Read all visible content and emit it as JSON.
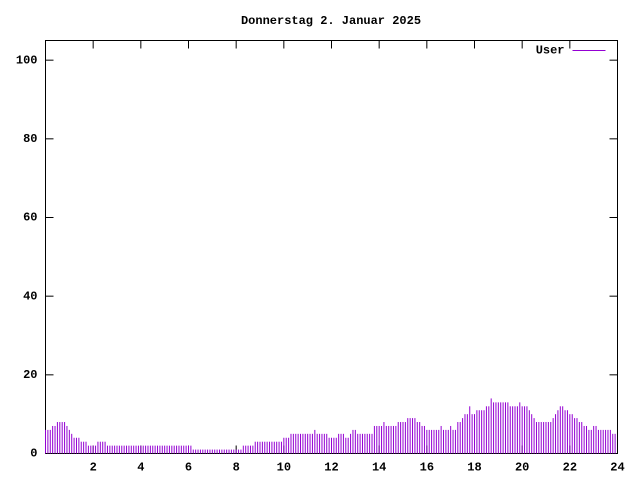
{
  "chart_data": {
    "type": "impulse",
    "title": "Donnerstag 2. Januar 2025",
    "xlim": [
      0,
      24
    ],
    "xticks": [
      2,
      4,
      6,
      8,
      10,
      12,
      14,
      16,
      18,
      20,
      22,
      24
    ],
    "ylim": [
      0,
      105
    ],
    "yticks": [
      0,
      20,
      40,
      60,
      80,
      100
    ],
    "legend": "top-right",
    "x": [
      0,
      0.1,
      0.2,
      0.3,
      0.4,
      0.5,
      0.6,
      0.7,
      0.8,
      0.9,
      1,
      1.1,
      1.2,
      1.3,
      1.4,
      1.5,
      1.6,
      1.7,
      1.8,
      1.9,
      2,
      2.1,
      2.2,
      2.3,
      2.4,
      2.5,
      2.6,
      2.7,
      2.8,
      2.9,
      3,
      3.1,
      3.2,
      3.3,
      3.4,
      3.5,
      3.6,
      3.7,
      3.8,
      3.9,
      4,
      4.1,
      4.2,
      4.3,
      4.4,
      4.5,
      4.6,
      4.7,
      4.8,
      4.9,
      5,
      5.1,
      5.2,
      5.3,
      5.4,
      5.5,
      5.6,
      5.7,
      5.8,
      5.9,
      6,
      6.1,
      6.2,
      6.3,
      6.4,
      6.5,
      6.6,
      6.7,
      6.8,
      6.9,
      7,
      7.1,
      7.2,
      7.3,
      7.4,
      7.5,
      7.6,
      7.7,
      7.8,
      7.9,
      8,
      8.1,
      8.2,
      8.3,
      8.4,
      8.5,
      8.6,
      8.7,
      8.8,
      8.9,
      9,
      9.1,
      9.2,
      9.3,
      9.4,
      9.5,
      9.6,
      9.7,
      9.8,
      9.9,
      10,
      10.1,
      10.2,
      10.3,
      10.4,
      10.5,
      10.6,
      10.7,
      10.8,
      10.9,
      11,
      11.1,
      11.2,
      11.3,
      11.4,
      11.5,
      11.6,
      11.7,
      11.8,
      11.9,
      12,
      12.1,
      12.2,
      12.3,
      12.4,
      12.5,
      12.6,
      12.7,
      12.8,
      12.9,
      13,
      13.1,
      13.2,
      13.3,
      13.4,
      13.5,
      13.6,
      13.7,
      13.8,
      13.9,
      14,
      14.1,
      14.2,
      14.3,
      14.4,
      14.5,
      14.6,
      14.7,
      14.8,
      14.9,
      15,
      15.1,
      15.2,
      15.3,
      15.4,
      15.5,
      15.6,
      15.7,
      15.8,
      15.9,
      16,
      16.1,
      16.2,
      16.3,
      16.4,
      16.5,
      16.6,
      16.7,
      16.8,
      16.9,
      17,
      17.1,
      17.2,
      17.3,
      17.4,
      17.5,
      17.6,
      17.7,
      17.8,
      17.9,
      18,
      18.1,
      18.2,
      18.3,
      18.4,
      18.5,
      18.6,
      18.7,
      18.8,
      18.9,
      19,
      19.1,
      19.2,
      19.3,
      19.4,
      19.5,
      19.6,
      19.7,
      19.8,
      19.9,
      20,
      20.1,
      20.2,
      20.3,
      20.4,
      20.5,
      20.6,
      20.7,
      20.8,
      20.9,
      21,
      21.1,
      21.2,
      21.3,
      21.4,
      21.5,
      21.6,
      21.7,
      21.8,
      21.9,
      22,
      22.1,
      22.2,
      22.3,
      22.4,
      22.5,
      22.6,
      22.7,
      22.8,
      22.9,
      23,
      23.1,
      23.2,
      23.3,
      23.4,
      23.5,
      23.6,
      23.7,
      23.8,
      23.9
    ],
    "series": [
      {
        "name": "User",
        "color": "#9400d3",
        "values": [
          6,
          6,
          6,
          7,
          7,
          8,
          8,
          8,
          8,
          7,
          6,
          5,
          4,
          4,
          4,
          3,
          3,
          3,
          2,
          2,
          2,
          2,
          3,
          3,
          3,
          3,
          2,
          2,
          2,
          2,
          2,
          2,
          2,
          2,
          2,
          2,
          2,
          2,
          2,
          2,
          2,
          2,
          2,
          2,
          2,
          2,
          2,
          2,
          2,
          2,
          2,
          2,
          2,
          2,
          2,
          2,
          2,
          2,
          2,
          2,
          2,
          2,
          1,
          1,
          1,
          1,
          1,
          1,
          1,
          1,
          1,
          1,
          1,
          1,
          1,
          1,
          1,
          1,
          1,
          1,
          1,
          1,
          1,
          2,
          2,
          2,
          2,
          2,
          3,
          3,
          3,
          3,
          3,
          3,
          3,
          3,
          3,
          3,
          3,
          3,
          4,
          4,
          4,
          5,
          5,
          5,
          5,
          5,
          5,
          5,
          5,
          5,
          5,
          6,
          5,
          5,
          5,
          5,
          5,
          4,
          4,
          4,
          4,
          5,
          5,
          5,
          4,
          4,
          5,
          6,
          6,
          5,
          5,
          5,
          5,
          5,
          5,
          5,
          7,
          7,
          7,
          7,
          8,
          7,
          7,
          7,
          7,
          7,
          8,
          8,
          8,
          8,
          9,
          9,
          9,
          9,
          8,
          8,
          7,
          7,
          6,
          6,
          6,
          6,
          6,
          6,
          7,
          6,
          6,
          6,
          7,
          6,
          6,
          8,
          8,
          9,
          10,
          10,
          12,
          10,
          10,
          11,
          11,
          11,
          11,
          12,
          12,
          14,
          13,
          13,
          13,
          13,
          13,
          13,
          13,
          12,
          12,
          12,
          12,
          13,
          12,
          12,
          12,
          11,
          10,
          9,
          8,
          8,
          8,
          8,
          8,
          8,
          8,
          9,
          10,
          11,
          12,
          12,
          11,
          11,
          10,
          10,
          9,
          9,
          8,
          8,
          7,
          7,
          6,
          6,
          7,
          7,
          6,
          6,
          6,
          6,
          6,
          6,
          5,
          5
        ]
      }
    ]
  }
}
